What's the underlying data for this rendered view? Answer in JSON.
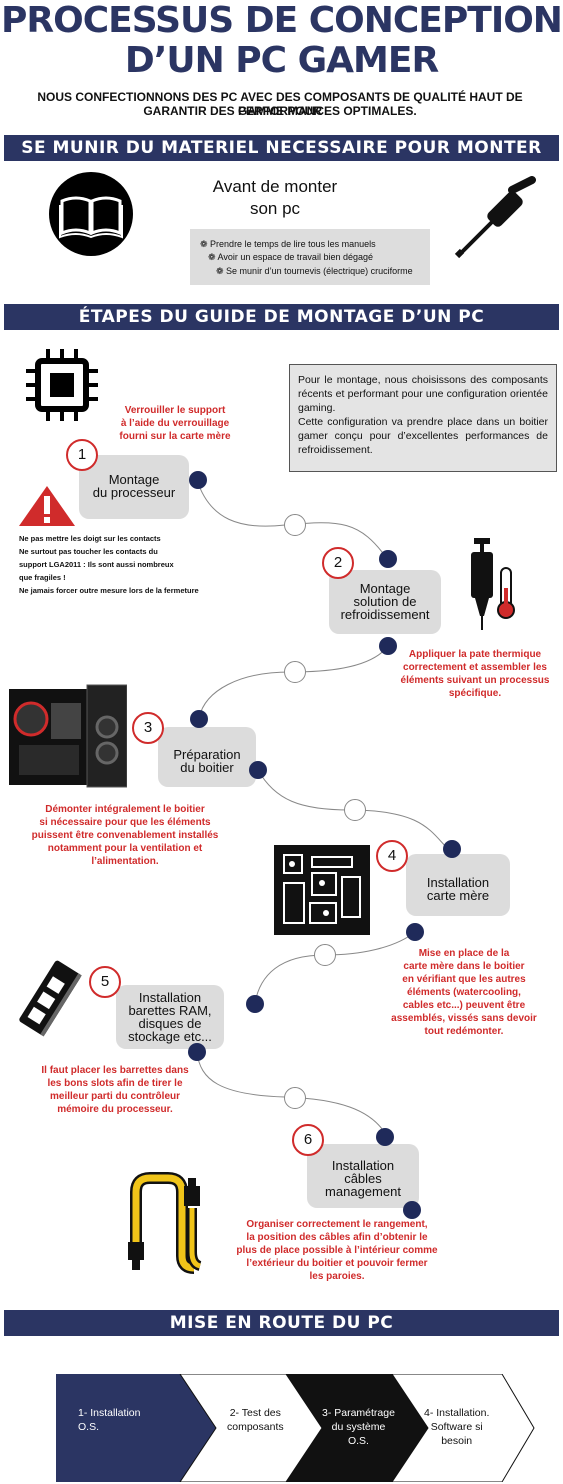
{
  "title": {
    "line1": "PROCESSUS DE CONCEPTION",
    "line2": "D’UN PC GAMER"
  },
  "intro": {
    "line1": "NOUS CONFECTIONNONS DES  PC AVEC DES COMPOSANTS DE QUALITÉ HAUT DE GAMME POUR",
    "line2": "GARANTIR DES PERFORMANCES OPTIMALES."
  },
  "section1": {
    "title": "SE MUNIR DU MATERIEL NECESSAIRE POUR MONTER UN PC",
    "before_line1": "Avant de monter",
    "before_line2": "son pc",
    "tips": [
      "Prendre le temps de lire tous les manuels",
      "Avoir un espace de travail bien dégagé",
      "Se munir d’un tournevis (électrique) cruciforme"
    ]
  },
  "section2": {
    "title": "ÉTAPES DU GUIDE DE MONTAGE D’UN PC",
    "note": [
      "Pour le montage, nous choisissons des composants récents et performant pour une configuration orientée gaming.",
      "Cette configuration va prendre place dans un boitier gamer conçu pour d’excellentes performances de refroidissement."
    ],
    "warning": [
      "Ne pas mettre les doigt sur les contacts",
      "Ne surtout pas toucher les contacts du",
      "support LGA2011 : Ils sont aussi nombreux",
      "que fragiles !",
      "Ne jamais forcer outre mesure lors de la fermeture"
    ],
    "steps": [
      {
        "num": "1",
        "lines": [
          "Montage",
          "du processeur"
        ],
        "note": [
          "Verrouiller le support",
          "à l’aide du verrouillage",
          "fourni sur la carte mère"
        ]
      },
      {
        "num": "2",
        "lines": [
          "Montage",
          "solution de",
          "refroidissement"
        ],
        "note": [
          "Appliquer la pate thermique",
          "correctement et assembler les",
          "éléments suivant un processus",
          "spécifique."
        ]
      },
      {
        "num": "3",
        "lines": [
          "Préparation",
          "du boitier"
        ],
        "note": [
          "Démonter intégralement le boitier",
          "si nécessaire pour que les éléments",
          "puissent être convenablement installés",
          "notamment pour la ventilation et",
          "l’alimentation."
        ]
      },
      {
        "num": "4",
        "lines": [
          "Installation",
          "carte mère"
        ],
        "note": [
          "Mise en place de la",
          "carte mère dans le boitier",
          "en vérifiant que les autres",
          "éléments (watercooling,",
          "cables etc...) peuvent être",
          "assemblés, vissés sans devoir",
          "tout redémonter."
        ]
      },
      {
        "num": "5",
        "lines": [
          "Installation",
          "barettes RAM,",
          "disques de",
          "stockage etc..."
        ],
        "note": [
          "Il faut placer les barrettes dans",
          "les bons slots afin de tirer le",
          "meilleur parti du contrôleur",
          "mémoire du processeur."
        ]
      },
      {
        "num": "6",
        "lines": [
          "Installation",
          "câbles",
          "management"
        ],
        "note": [
          "Organiser correctement le rangement,",
          "la position des câbles afin d’obtenir le",
          "plus de place possible à l’intérieur comme",
          "l’extérieur du boitier et pouvoir fermer",
          "les paroies."
        ]
      }
    ]
  },
  "section3": {
    "title": "MISE EN ROUTE DU PC",
    "stages": [
      {
        "lines": [
          "1- Installation",
          "O.S."
        ],
        "fill": "#2b3563",
        "text": "#ffffff"
      },
      {
        "lines": [
          "2- Test des",
          "composants"
        ],
        "fill": "#ffffff",
        "text": "#111111"
      },
      {
        "lines": [
          "3- Paramétrage",
          "du système",
          "O.S."
        ],
        "fill": "#111111",
        "text": "#ffffff"
      },
      {
        "lines": [
          "4- Installation.",
          "Software si",
          "besoin"
        ],
        "fill": "#ffffff",
        "text": "#111111"
      }
    ]
  },
  "colors": {
    "navy": "#2b3563",
    "red": "#d02b2b",
    "grey": "#dcdcdc"
  }
}
